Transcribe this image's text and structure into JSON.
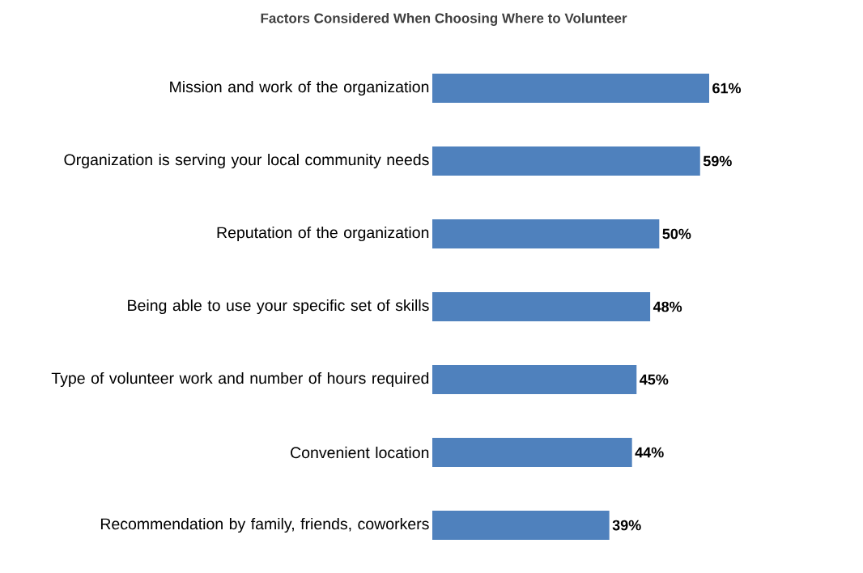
{
  "chart_data": {
    "type": "bar",
    "orientation": "horizontal",
    "title": "Factors Considered When Choosing Where to Volunteer",
    "categories": [
      "Mission and work of the organization",
      "Organization is serving your local community needs",
      "Reputation of the organization",
      "Being able to use your specific set of skills",
      "Type of volunteer work and number of hours required",
      "Convenient location",
      "Recommendation by family, friends, coworkers"
    ],
    "values": [
      61,
      59,
      50,
      48,
      45,
      44,
      39
    ],
    "value_labels": [
      "61%",
      "59%",
      "50%",
      "48%",
      "45%",
      "44%",
      "39%"
    ],
    "color": "#4f81bd"
  }
}
